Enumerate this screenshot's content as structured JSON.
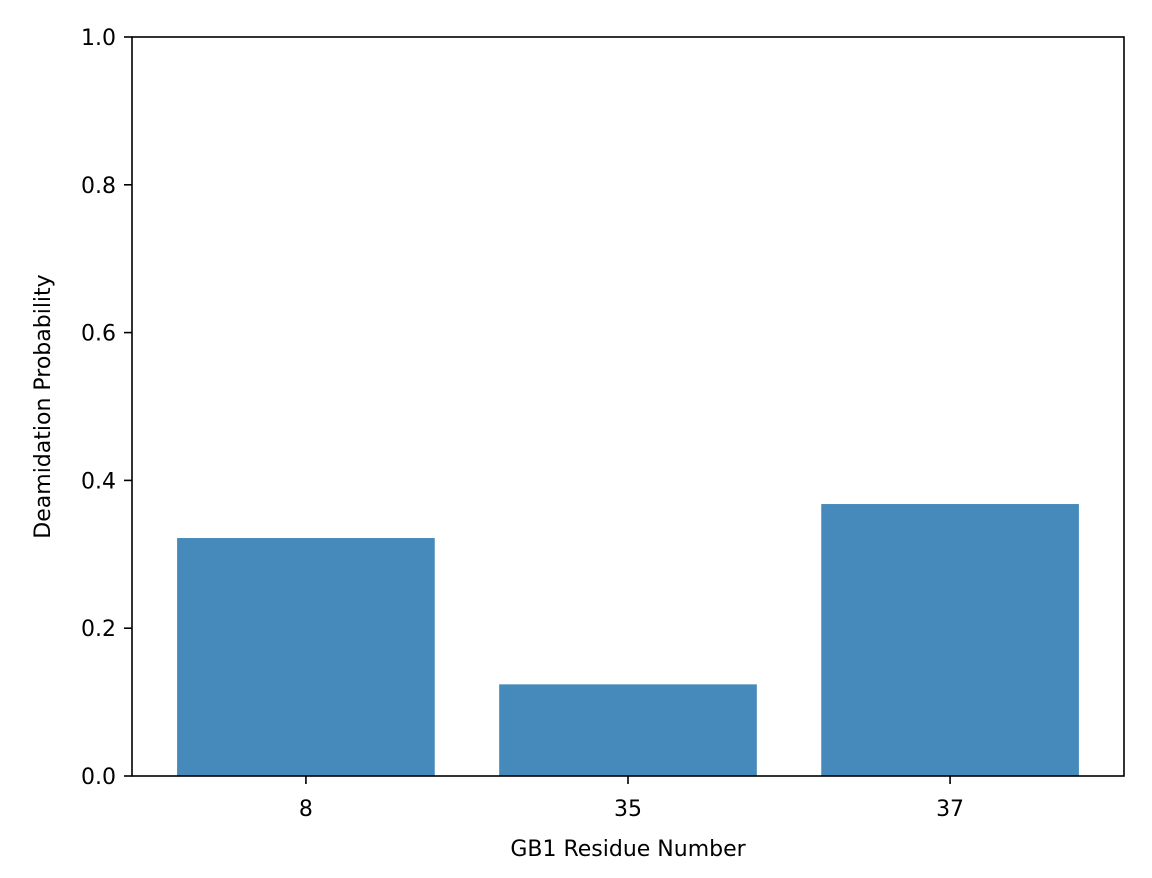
{
  "chart_data": {
    "type": "bar",
    "title": "",
    "xlabel": "GB1 Residue Number",
    "ylabel": "Deamidation Probability",
    "categories": [
      "8",
      "35",
      "37"
    ],
    "values": [
      0.322,
      0.124,
      0.368
    ],
    "ylim": [
      0,
      1.0
    ],
    "yticks": [
      "0.0",
      "0.2",
      "0.4",
      "0.6",
      "0.8",
      "1.0"
    ],
    "ytick_values": [
      0,
      0.2,
      0.4,
      0.6,
      0.8,
      1.0
    ],
    "grid": false,
    "legend": "none",
    "bar_color": "#4689bb"
  }
}
